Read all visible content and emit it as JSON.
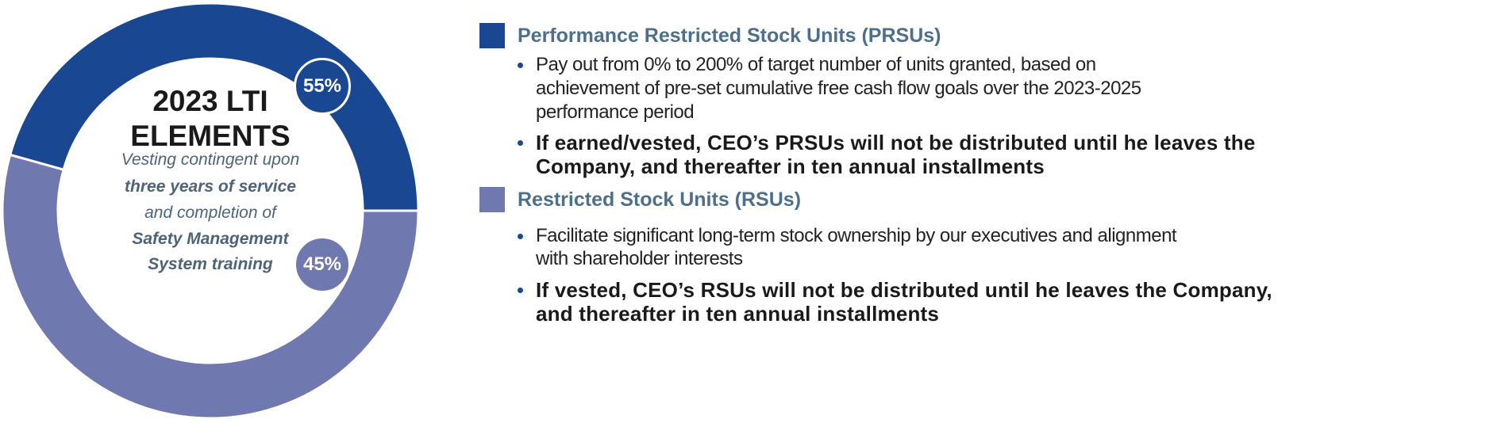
{
  "chart_data": {
    "type": "pie",
    "title": "2023 LTI ELEMENTS",
    "categories": [
      "Performance Restricted Stock Units (PRSUs)",
      "Restricted Stock Units (RSUs)"
    ],
    "values": [
      55,
      45
    ],
    "data_labels": [
      "55%",
      "45%"
    ],
    "colors": [
      "#1a4791",
      "#6f79b0"
    ],
    "donut": true
  },
  "center": {
    "title_line1": "2023 LTI",
    "title_line2": "ELEMENTS",
    "sub1": "Vesting contingent upon",
    "sub2": "three years of service",
    "sub3": "and completion of",
    "sub4": "Safety Management",
    "sub5": "System training"
  },
  "prsu": {
    "heading": "Performance Restricted Stock Units (PRSUs)",
    "bullet1": [
      "Pay out from 0% to 200% of target number of units granted, based on",
      "achievement of pre-set cumulative free cash flow goals over the 2023-2025",
      "performance period"
    ],
    "bullet2": [
      "If earned/vested, CEO’s PRSUs will not be distributed until he leaves the",
      "Company, and thereafter in ten annual installments"
    ]
  },
  "rsu": {
    "heading": "Restricted Stock Units (RSUs)",
    "bullet1": [
      "Facilitate significant long-term stock ownership by our executives and alignment",
      "with shareholder interests"
    ],
    "bullet2": [
      "If vested, CEO’s RSUs will not be distributed until he leaves the Company,",
      "and thereafter in ten annual installments"
    ]
  }
}
